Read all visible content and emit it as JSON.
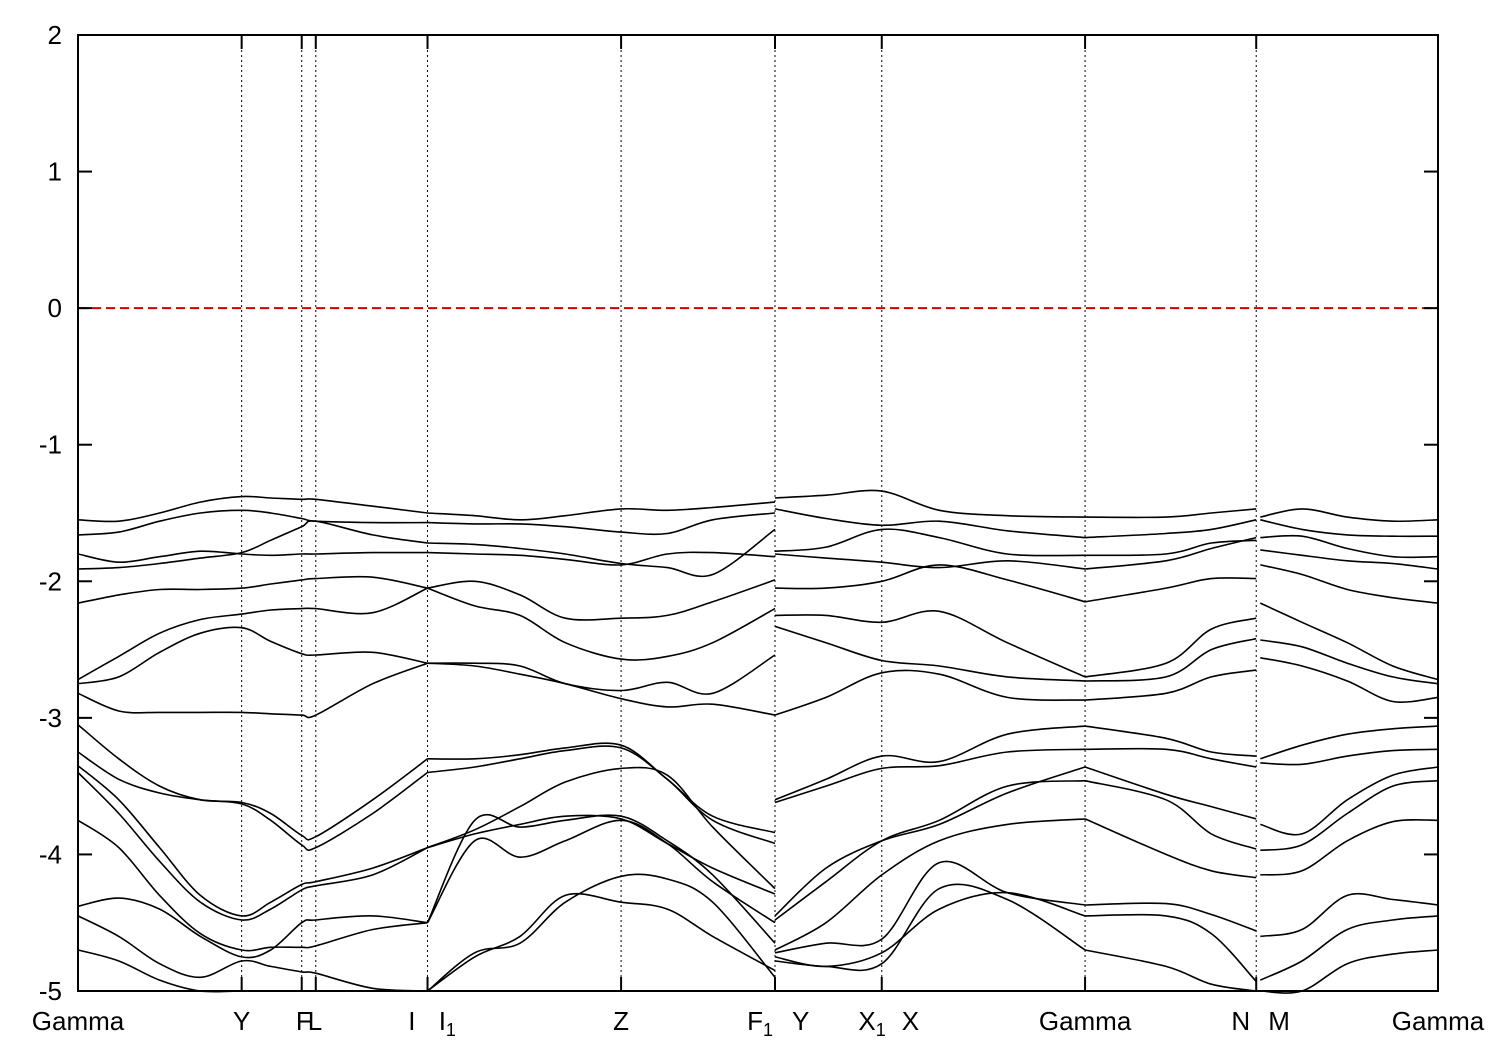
{
  "chart_data": {
    "type": "line",
    "title": "",
    "xlabel": "",
    "ylabel": "",
    "ylim": [
      -5,
      2
    ],
    "yticks": [
      2,
      1,
      0,
      -1,
      -2,
      -3,
      -4,
      -5
    ],
    "xlim": [
      0,
      6.0
    ],
    "grid": false,
    "fermi_level": {
      "y": 0,
      "color": "#d00000",
      "style": "dashed"
    },
    "band_color": "#000000",
    "high_symmetry_points": [
      {
        "x": 0.0,
        "label": "Gamma",
        "sub": "",
        "vline": false
      },
      {
        "x": 0.722,
        "label": "Y",
        "sub": "",
        "vline": true
      },
      {
        "x": 0.987,
        "label": "F",
        "sub": "",
        "vline": true
      },
      {
        "x": 1.049,
        "label": "L",
        "sub": "",
        "vline": true
      },
      {
        "x": 1.542,
        "label": "I",
        "sub": "",
        "vline": true
      },
      {
        "x": 1.556,
        "label": "I",
        "sub": "1",
        "vline": false
      },
      {
        "x": 2.396,
        "label": "Z",
        "sub": "",
        "vline": true
      },
      {
        "x": 3.075,
        "label": "F",
        "sub": "1",
        "vline": true
      },
      {
        "x": 3.106,
        "label": "Y",
        "sub": "",
        "vline": false
      },
      {
        "x": 3.546,
        "label": "X",
        "sub": "1",
        "vline": true
      },
      {
        "x": 3.59,
        "label": "X",
        "sub": "",
        "vline": false
      },
      {
        "x": 4.443,
        "label": "Gamma",
        "sub": "",
        "vline": true
      },
      {
        "x": 5.198,
        "label": "N",
        "sub": "",
        "vline": true
      },
      {
        "x": 5.216,
        "label": "M",
        "sub": "",
        "vline": false
      },
      {
        "x": 6.0,
        "label": "Gamma",
        "sub": "",
        "vline": false
      }
    ],
    "series": [
      {
        "segment": 0,
        "x": [
          0,
          0.18,
          0.36,
          0.54,
          0.722,
          0.85,
          0.987,
          1.049,
          1.3,
          1.542
        ],
        "bands": [
          [
            -1.55,
            -1.56,
            -1.5,
            -1.42,
            -1.38,
            -1.39,
            -1.4,
            -1.4,
            -1.45,
            -1.5
          ],
          [
            -1.66,
            -1.64,
            -1.56,
            -1.5,
            -1.48,
            -1.5,
            -1.54,
            -1.56,
            -1.57,
            -1.57
          ],
          [
            -1.8,
            -1.86,
            -1.82,
            -1.78,
            -1.8,
            -1.81,
            -1.8,
            -1.8,
            -1.79,
            -1.79
          ],
          [
            -1.91,
            -1.9,
            -1.87,
            -1.83,
            -1.79,
            -1.7,
            -1.6,
            -1.56,
            -1.66,
            -1.72
          ],
          [
            -2.16,
            -2.1,
            -2.06,
            -2.06,
            -2.05,
            -2.02,
            -1.99,
            -1.98,
            -1.97,
            -2.05
          ],
          [
            -2.72,
            -2.55,
            -2.38,
            -2.28,
            -2.24,
            -2.21,
            -2.2,
            -2.2,
            -2.23,
            -2.05
          ],
          [
            -2.75,
            -2.7,
            -2.52,
            -2.38,
            -2.34,
            -2.44,
            -2.53,
            -2.54,
            -2.52,
            -2.6
          ],
          [
            -2.82,
            -2.95,
            -2.96,
            -2.96,
            -2.96,
            -2.97,
            -2.98,
            -2.98,
            -2.75,
            -2.6
          ],
          [
            -3.05,
            -3.3,
            -3.5,
            -3.6,
            -3.62,
            -3.7,
            -3.86,
            -3.87,
            -3.6,
            -3.3
          ],
          [
            -3.25,
            -3.45,
            -3.55,
            -3.6,
            -3.63,
            -3.75,
            -3.93,
            -3.95,
            -3.7,
            -3.4
          ],
          [
            -3.35,
            -3.6,
            -3.95,
            -4.3,
            -4.45,
            -4.35,
            -4.22,
            -4.2,
            -4.1,
            -3.95
          ],
          [
            -3.4,
            -3.7,
            -4.05,
            -4.35,
            -4.48,
            -4.4,
            -4.26,
            -4.23,
            -4.15,
            -3.95
          ],
          [
            -3.75,
            -3.95,
            -4.3,
            -4.58,
            -4.7,
            -4.68,
            -4.68,
            -4.67,
            -4.55,
            -4.5
          ],
          [
            -4.38,
            -4.32,
            -4.4,
            -4.6,
            -4.75,
            -4.7,
            -4.5,
            -4.48,
            -4.45,
            -4.5
          ],
          [
            -4.45,
            -4.6,
            -4.8,
            -4.9,
            -4.78,
            -4.82,
            -4.86,
            -4.87,
            -4.98,
            -5.0
          ],
          [
            -4.7,
            -4.78,
            -4.92,
            -5.0,
            -5.0,
            -5.0,
            -5.0,
            -5.0,
            -5.0,
            -5.0
          ]
        ]
      },
      {
        "segment": 1,
        "x": [
          1.542,
          1.75,
          1.95,
          2.15,
          2.396,
          2.6,
          2.8,
          3.075
        ],
        "bands": [
          [
            -1.5,
            -1.52,
            -1.55,
            -1.52,
            -1.47,
            -1.48,
            -1.46,
            -1.42
          ],
          [
            -1.57,
            -1.58,
            -1.58,
            -1.6,
            -1.64,
            -1.65,
            -1.55,
            -1.5
          ],
          [
            -1.72,
            -1.73,
            -1.76,
            -1.8,
            -1.87,
            -1.9,
            -1.95,
            -1.62
          ],
          [
            -1.79,
            -1.8,
            -1.81,
            -1.84,
            -1.88,
            -1.8,
            -1.79,
            -1.82
          ],
          [
            -2.05,
            -2.0,
            -2.1,
            -2.27,
            -2.27,
            -2.25,
            -2.15,
            -1.99
          ],
          [
            -2.05,
            -2.18,
            -2.25,
            -2.45,
            -2.57,
            -2.55,
            -2.45,
            -2.2
          ],
          [
            -2.6,
            -2.6,
            -2.62,
            -2.75,
            -2.8,
            -2.74,
            -2.82,
            -2.54
          ],
          [
            -2.6,
            -2.62,
            -2.68,
            -2.75,
            -2.86,
            -2.92,
            -2.9,
            -2.98
          ],
          [
            -3.3,
            -3.3,
            -3.27,
            -3.22,
            -3.2,
            -3.45,
            -3.72,
            -3.84
          ],
          [
            -3.4,
            -3.36,
            -3.3,
            -3.24,
            -3.22,
            -3.45,
            -3.75,
            -3.92
          ],
          [
            -3.95,
            -3.82,
            -3.65,
            -3.47,
            -3.37,
            -3.42,
            -3.8,
            -4.25
          ],
          [
            -3.95,
            -3.85,
            -3.78,
            -3.72,
            -3.74,
            -3.92,
            -4.1,
            -4.29
          ],
          [
            -4.5,
            -3.75,
            -3.8,
            -3.75,
            -3.72,
            -3.9,
            -4.15,
            -4.65
          ],
          [
            -4.5,
            -3.9,
            -4.02,
            -3.9,
            -3.75,
            -3.92,
            -4.2,
            -4.5
          ],
          [
            -5.0,
            -4.72,
            -4.65,
            -4.35,
            -4.16,
            -4.18,
            -4.35,
            -4.9
          ],
          [
            -5.0,
            -4.75,
            -4.6,
            -4.3,
            -4.35,
            -4.4,
            -4.6,
            -4.85
          ]
        ]
      },
      {
        "segment": 2,
        "x": [
          3.075,
          3.3,
          3.546,
          3.8,
          4.1,
          4.443
        ],
        "bands": [
          [
            -1.39,
            -1.37,
            -1.34,
            -1.48,
            -1.52,
            -1.53
          ],
          [
            -1.47,
            -1.54,
            -1.59,
            -1.56,
            -1.63,
            -1.68
          ],
          [
            -1.78,
            -1.75,
            -1.62,
            -1.68,
            -1.8,
            -1.81
          ],
          [
            -1.8,
            -1.83,
            -1.86,
            -1.9,
            -1.85,
            -1.91
          ],
          [
            -2.05,
            -2.05,
            -2.0,
            -1.88,
            -1.99,
            -2.15
          ],
          [
            -2.25,
            -2.25,
            -2.3,
            -2.22,
            -2.45,
            -2.7
          ],
          [
            -2.33,
            -2.45,
            -2.58,
            -2.62,
            -2.7,
            -2.73
          ],
          [
            -2.98,
            -2.85,
            -2.67,
            -2.68,
            -2.85,
            -2.87
          ],
          [
            -3.6,
            -3.45,
            -3.28,
            -3.32,
            -3.12,
            -3.06
          ],
          [
            -3.62,
            -3.5,
            -3.37,
            -3.35,
            -3.25,
            -3.23
          ],
          [
            -4.45,
            -4.1,
            -3.9,
            -3.78,
            -3.55,
            -3.36
          ],
          [
            -4.48,
            -4.2,
            -3.9,
            -3.75,
            -3.5,
            -3.46
          ],
          [
            -4.7,
            -4.5,
            -4.15,
            -3.9,
            -3.78,
            -3.74
          ],
          [
            -4.72,
            -4.65,
            -4.62,
            -4.06,
            -4.28,
            -4.37
          ],
          [
            -4.75,
            -4.82,
            -4.72,
            -4.4,
            -4.28,
            -4.45
          ],
          [
            -4.78,
            -4.82,
            -4.8,
            -4.25,
            -4.33,
            -4.7
          ]
        ]
      },
      {
        "segment": 3,
        "x": [
          4.443,
          4.8,
          5.0,
          5.198
        ],
        "bands": [
          [
            -1.53,
            -1.53,
            -1.5,
            -1.47
          ],
          [
            -1.68,
            -1.65,
            -1.62,
            -1.55
          ],
          [
            -1.81,
            -1.8,
            -1.72,
            -1.7
          ],
          [
            -1.91,
            -1.85,
            -1.76,
            -1.68
          ],
          [
            -2.15,
            -2.05,
            -1.98,
            -1.98
          ],
          [
            -2.7,
            -2.6,
            -2.35,
            -2.27
          ],
          [
            -2.73,
            -2.7,
            -2.5,
            -2.42
          ],
          [
            -2.87,
            -2.82,
            -2.7,
            -2.65
          ],
          [
            -3.06,
            -3.15,
            -3.25,
            -3.28
          ],
          [
            -3.23,
            -3.23,
            -3.3,
            -3.36
          ],
          [
            -3.36,
            -3.56,
            -3.65,
            -3.74
          ],
          [
            -3.46,
            -3.6,
            -3.85,
            -3.96
          ],
          [
            -3.74,
            -4.0,
            -4.12,
            -4.17
          ],
          [
            -4.37,
            -4.36,
            -4.44,
            -4.56
          ],
          [
            -4.45,
            -4.45,
            -4.58,
            -4.93
          ],
          [
            -4.7,
            -4.82,
            -4.95,
            -5.0
          ]
        ]
      },
      {
        "segment": 4,
        "x": [
          5.216,
          5.4,
          5.6,
          5.8,
          6.0
        ],
        "bands": [
          [
            -1.53,
            -1.47,
            -1.53,
            -1.56,
            -1.55
          ],
          [
            -1.55,
            -1.62,
            -1.66,
            -1.67,
            -1.67
          ],
          [
            -1.68,
            -1.67,
            -1.76,
            -1.82,
            -1.82
          ],
          [
            -1.77,
            -1.81,
            -1.85,
            -1.87,
            -1.91
          ],
          [
            -1.88,
            -1.95,
            -2.06,
            -2.12,
            -2.16
          ],
          [
            -2.16,
            -2.3,
            -2.45,
            -2.62,
            -2.72
          ],
          [
            -2.43,
            -2.48,
            -2.6,
            -2.7,
            -2.75
          ],
          [
            -2.56,
            -2.62,
            -2.73,
            -2.88,
            -2.85
          ],
          [
            -3.3,
            -3.2,
            -3.12,
            -3.08,
            -3.06
          ],
          [
            -3.33,
            -3.34,
            -3.28,
            -3.24,
            -3.23
          ],
          [
            -3.78,
            -3.85,
            -3.6,
            -3.42,
            -3.36
          ],
          [
            -3.97,
            -3.93,
            -3.7,
            -3.5,
            -3.46
          ],
          [
            -4.15,
            -4.12,
            -3.9,
            -3.76,
            -3.75
          ],
          [
            -4.6,
            -4.55,
            -4.3,
            -4.33,
            -4.37
          ],
          [
            -4.92,
            -4.78,
            -4.55,
            -4.48,
            -4.45
          ],
          [
            -5.0,
            -5.0,
            -4.8,
            -4.73,
            -4.7
          ]
        ]
      }
    ]
  }
}
